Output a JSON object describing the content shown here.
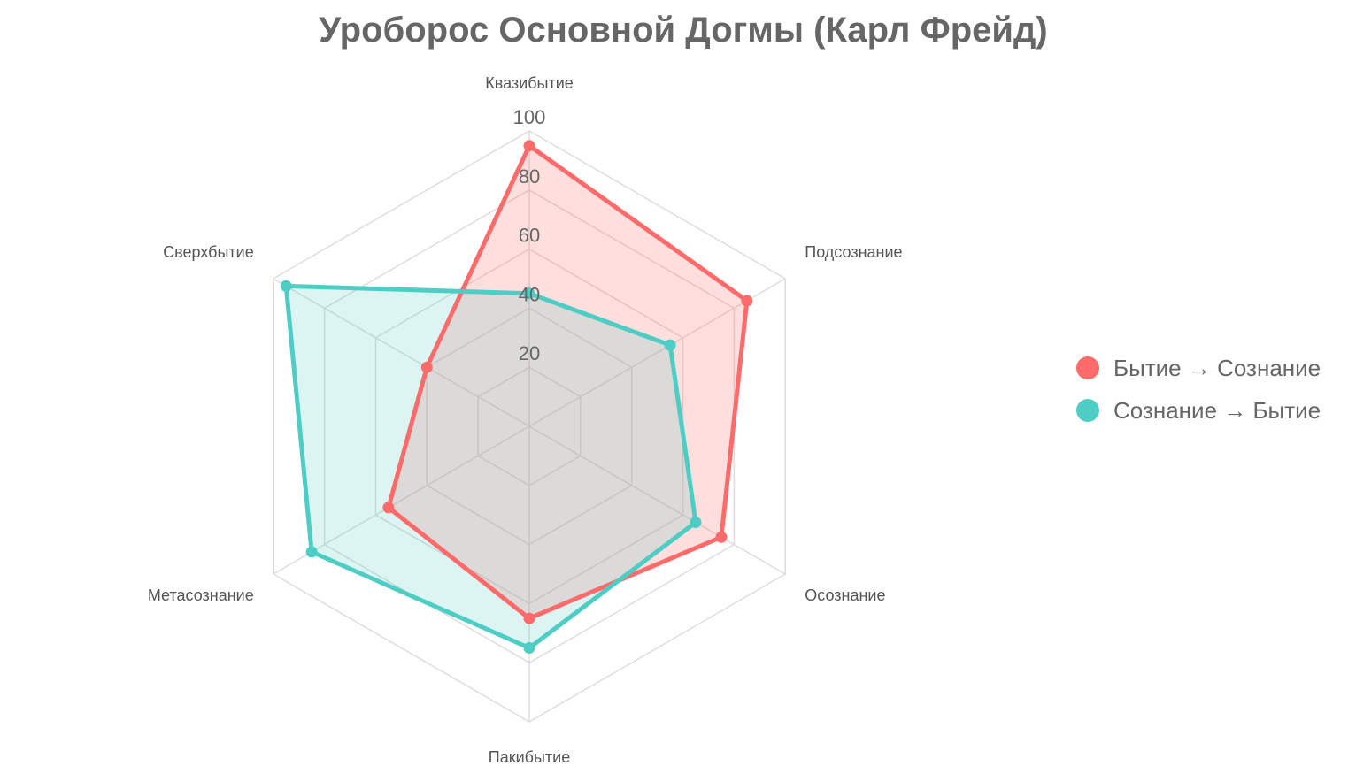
{
  "chart_data": {
    "type": "radar",
    "title": "Уроборос Основной Догмы (Карл Фрейд)",
    "axes": [
      "Квазибытие",
      "Подсознание",
      "Осознание",
      "Пакибытие",
      "Метасознание",
      "Сверхбытие"
    ],
    "r_ticks": [
      "20",
      "40",
      "60",
      "80",
      "100"
    ],
    "r_range": [
      0,
      100
    ],
    "series": [
      {
        "name": "Бытие → Сознание",
        "color": "#ff6b6b",
        "fill": "rgba(255,107,107,0.22)",
        "values": [
          95,
          85,
          75,
          65,
          55,
          40
        ]
      },
      {
        "name": "Сознание → Бытие",
        "color": "#4ecdc4",
        "fill": "rgba(78,205,196,0.2)",
        "values": [
          45,
          55,
          65,
          75,
          85,
          95
        ]
      }
    ],
    "legend_position": "right",
    "grid": true
  }
}
